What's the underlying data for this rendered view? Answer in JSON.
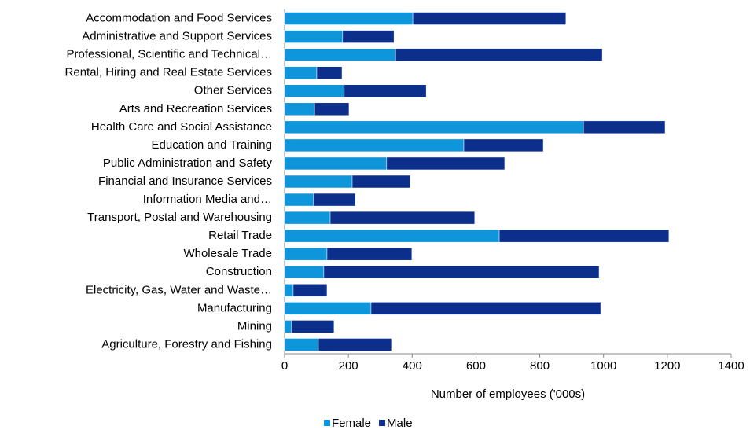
{
  "chart_data": {
    "type": "stacked_bar_horizontal",
    "categories": [
      "Accommodation and Food Services",
      "Administrative and Support Services",
      "Professional, Scientific and Technical…",
      "Rental, Hiring and Real Estate Services",
      "Other Services",
      "Arts and Recreation Services",
      "Health Care and Social Assistance",
      "Education and Training",
      "Public Administration and Safety",
      "Financial and Insurance Services",
      "Information Media and…",
      "Transport, Postal and Warehousing",
      "Retail Trade",
      "Wholesale Trade",
      "Construction",
      "Electricity, Gas, Water and Waste…",
      "Manufacturing",
      "Mining",
      "Agriculture, Forestry and Fishing"
    ],
    "series": [
      {
        "name": "Female",
        "color": "#0f95d9",
        "values": [
          402,
          182,
          348,
          101,
          187,
          94,
          937,
          562,
          320,
          212,
          91,
          143,
          673,
          133,
          123,
          27,
          271,
          22,
          106
        ]
      },
      {
        "name": "Male",
        "color": "#0c2f8c",
        "values": [
          480,
          161,
          648,
          79,
          257,
          108,
          256,
          249,
          370,
          182,
          131,
          453,
          532,
          266,
          863,
          106,
          720,
          133,
          229
        ]
      }
    ],
    "xlabel": "Number of employees ('000s)",
    "xlim": [
      0,
      1400
    ],
    "xticks": [
      0,
      200,
      400,
      600,
      800,
      1000,
      1200,
      1400
    ],
    "legend": "bottom"
  }
}
